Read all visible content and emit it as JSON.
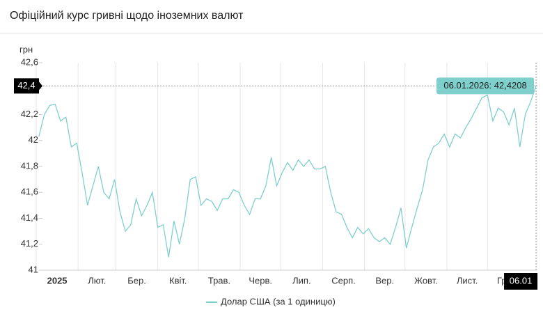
{
  "title": "Офіційний курс гривні щодо іноземних валют",
  "chart_data": {
    "type": "line",
    "y_label": "грн",
    "series": [
      {
        "name": "Долар США (за 1 одиницю)",
        "color": "#7fcfcc",
        "values": [
          42.03,
          42.2,
          42.27,
          42.28,
          42.15,
          42.18,
          41.95,
          41.98,
          41.75,
          41.5,
          41.65,
          41.8,
          41.6,
          41.55,
          41.7,
          41.45,
          41.3,
          41.35,
          41.55,
          41.42,
          41.5,
          41.6,
          41.33,
          41.35,
          41.1,
          41.38,
          41.2,
          41.4,
          41.7,
          41.72,
          41.5,
          41.55,
          41.53,
          41.46,
          41.55,
          41.55,
          41.62,
          41.6,
          41.5,
          41.43,
          41.55,
          41.55,
          41.65,
          41.87,
          41.65,
          41.75,
          41.83,
          41.77,
          41.85,
          41.8,
          41.85,
          41.78,
          41.78,
          41.8,
          41.6,
          41.45,
          41.43,
          41.33,
          41.25,
          41.33,
          41.28,
          41.32,
          41.25,
          41.22,
          41.25,
          41.2,
          41.33,
          41.48,
          41.17,
          41.33,
          41.48,
          41.62,
          41.85,
          41.95,
          41.98,
          42.05,
          41.95,
          42.05,
          42.02,
          42.1,
          42.17,
          42.25,
          42.33,
          42.35,
          42.15,
          42.25,
          42.22,
          42.12,
          42.25,
          41.95,
          42.2,
          42.3,
          42.4208
        ]
      }
    ],
    "xlim": [
      -0.5,
      92.25
    ],
    "xticks": [
      {
        "value": -0.5,
        "label": "2025"
      },
      {
        "value": 7.25,
        "label": "Лют."
      },
      {
        "value": 14.25,
        "label": "Бер."
      },
      {
        "value": 22,
        "label": "Квіт."
      },
      {
        "value": 29.5,
        "label": "Трав."
      },
      {
        "value": 37.25,
        "label": "Черв."
      },
      {
        "value": 44.75,
        "label": "Лип."
      },
      {
        "value": 52.5,
        "label": "Серп."
      },
      {
        "value": 60.25,
        "label": "Вер."
      },
      {
        "value": 67.75,
        "label": "Жовт."
      },
      {
        "value": 75.5,
        "label": "Лист."
      },
      {
        "value": 83,
        "label": "Груд."
      }
    ],
    "ylim": [
      41,
      42.6
    ],
    "yticks": [
      41,
      {
        "value": 41.2,
        "label": "41,2"
      },
      {
        "value": 41.4,
        "label": "41,4"
      },
      {
        "value": 41.6,
        "label": "41,6"
      },
      {
        "value": 41.8,
        "label": "41,8"
      },
      42,
      {
        "value": 42.2,
        "label": "42,2"
      },
      {
        "value": 42.4,
        "label": "42,4"
      },
      {
        "value": 42.6,
        "label": "42,6"
      }
    ],
    "crosshair": {
      "x_label": "06.01",
      "y_label": "42,4",
      "tooltip": "06.01.2026: 42,4208"
    }
  }
}
